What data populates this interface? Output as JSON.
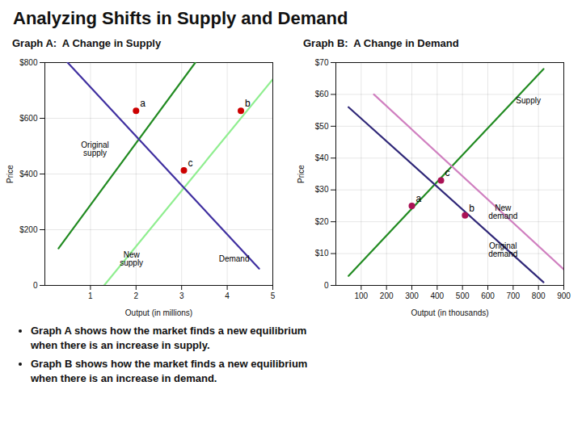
{
  "title": "Analyzing Shifts in Supply and Demand",
  "annotations": [
    "Graph A shows how the market finds a new equilibrium\nwhen there is an increase in supply.",
    "Graph B shows how the market finds a new equilibrium\nwhen there is an increase in demand."
  ],
  "chart_data": [
    {
      "type": "line",
      "title": "Graph A:  A Change in Supply",
      "xlabel": "Output (in millions)",
      "ylabel": "Price",
      "xlim": [
        0,
        5
      ],
      "ylim": [
        0,
        800
      ],
      "xticks": [
        1,
        2,
        3,
        4,
        5
      ],
      "yticks": [
        0,
        {
          "value": 200,
          "label": "$200"
        },
        {
          "value": 400,
          "label": "$400"
        },
        {
          "value": 600,
          "label": "$600"
        },
        {
          "value": 800,
          "label": "$800"
        }
      ],
      "grid": true,
      "series": [
        {
          "color": "#228B22",
          "x": [
            0.3,
            3.3
          ],
          "values": [
            133,
            800
          ]
        },
        {
          "color": "#90EE90",
          "x": [
            1.3,
            5.0
          ],
          "values": [
            0,
            740
          ]
        },
        {
          "color": "#4030a0",
          "x": [
            0.5,
            4.7
          ],
          "values": [
            800,
            60
          ]
        },
        {
          "type": "scatter",
          "marker": "o",
          "color": "#cc0000",
          "x": [
            2.0,
            4.3,
            3.05
          ],
          "values": [
            627,
            627,
            413
          ]
        }
      ],
      "annotations": [
        {
          "text": "a",
          "x": 2.0,
          "y": 627
        },
        {
          "text": "b",
          "x": 4.3,
          "y": 627
        },
        {
          "text": "c",
          "x": 3.05,
          "y": 413
        },
        {
          "text": "Original\nsupply",
          "x": 1.1,
          "y": 490
        },
        {
          "text": "New\nsupply",
          "x": 1.9,
          "y": 95
        },
        {
          "text": "Demand",
          "x": 4.15,
          "y": 95
        }
      ]
    },
    {
      "type": "line",
      "title": "Graph B:  A Change in Demand",
      "xlabel": "Output (in thousands)",
      "ylabel": "Price",
      "xlim": [
        0,
        900
      ],
      "ylim": [
        0,
        70
      ],
      "xticks": [
        100,
        200,
        300,
        400,
        500,
        600,
        700,
        800,
        900
      ],
      "yticks": [
        0,
        {
          "value": 10,
          "label": "$10"
        },
        {
          "value": 20,
          "label": "$20"
        },
        {
          "value": 30,
          "label": "$30"
        },
        {
          "value": 40,
          "label": "$40"
        },
        {
          "value": 50,
          "label": "$50"
        },
        {
          "value": 60,
          "label": "$60"
        },
        {
          "value": 70,
          "label": "$70"
        }
      ],
      "grid": true,
      "series": [
        {
          "color": "#228B22",
          "x": [
            50,
            820
          ],
          "values": [
            3,
            68
          ]
        },
        {
          "color": "#302878",
          "x": [
            50,
            820
          ],
          "values": [
            56,
            1
          ]
        },
        {
          "color": "#d080c0",
          "x": [
            150,
            900
          ],
          "values": [
            60,
            5
          ]
        },
        {
          "type": "scatter",
          "marker": "o",
          "color": "#aa1155",
          "x": [
            300,
            510,
            415
          ],
          "values": [
            25,
            22,
            33
          ]
        }
      ],
      "annotations": [
        {
          "text": "a",
          "x": 300,
          "y": 25
        },
        {
          "text": "b",
          "x": 510,
          "y": 22
        },
        {
          "text": "c",
          "x": 415,
          "y": 33
        },
        {
          "text": "Supply",
          "x": 760,
          "y": 58
        },
        {
          "text": "New\ndemand",
          "x": 660,
          "y": 23
        },
        {
          "text": "Original\ndemand",
          "x": 660,
          "y": 11
        }
      ]
    }
  ]
}
